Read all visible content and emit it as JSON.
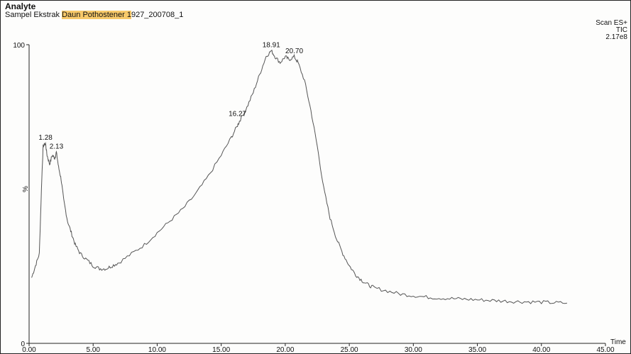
{
  "header": {
    "title": "Analyte",
    "sample_prefix": "Sampel Ekstrak ",
    "sample_highlight": "Daun Pothostener 1",
    "sample_suffix": "927_200708_1",
    "scan_mode": "Scan ES+",
    "trace_type": "TIC",
    "intensity": "2.17e8"
  },
  "colors": {
    "highlight": "#f7c96a",
    "trace": "#555555"
  },
  "chart_data": {
    "type": "line",
    "title": "",
    "xlabel": "Time",
    "ylabel": "%",
    "xlim": [
      0,
      45
    ],
    "ylim": [
      0,
      100
    ],
    "x_ticks": [
      "0.00",
      "5.00",
      "10.00",
      "15.00",
      "20.00",
      "25.00",
      "30.00",
      "35.00",
      "40.00",
      "45.00"
    ],
    "y_ticks": [
      "0",
      "100"
    ],
    "grid": false,
    "series": [
      {
        "x": [
          0.2,
          0.5,
          0.8,
          1.0,
          1.1,
          1.28,
          1.4,
          1.6,
          1.8,
          2.0,
          2.13,
          2.3,
          2.5,
          2.7,
          3.0,
          3.3,
          3.6,
          4.0,
          4.5,
          5.0,
          5.5,
          6.0,
          6.5,
          7.0,
          8.0,
          9.0,
          10.0,
          11.0,
          12.0,
          13.0,
          14.0,
          15.0,
          15.8,
          16.27,
          16.5,
          17.0,
          17.5,
          18.0,
          18.5,
          18.91,
          19.2,
          19.6,
          20.0,
          20.3,
          20.7,
          21.0,
          21.5,
          22.0,
          22.5,
          23.0,
          23.5,
          24.0,
          24.5,
          25.0,
          25.5,
          26.0,
          26.5,
          27.0,
          28.0,
          29.0,
          30.0,
          31.0,
          32.0,
          33.0,
          34.0,
          35.0,
          36.0,
          37.0,
          38.0,
          39.0,
          40.0,
          41.0,
          42.0
        ],
        "y": [
          22,
          26,
          30,
          56,
          66,
          67,
          63,
          60,
          63,
          62,
          64,
          59,
          55,
          48,
          41,
          37,
          33,
          30,
          28,
          26,
          25,
          25,
          26,
          27,
          30,
          33,
          37,
          41,
          45,
          50,
          56,
          63,
          69,
          73,
          75,
          79,
          84,
          90,
          96,
          98,
          96,
          94,
          96,
          95,
          96,
          94,
          88,
          78,
          66,
          52,
          42,
          35,
          30,
          26,
          23,
          21,
          19.5,
          18.5,
          17.5,
          16.5,
          16,
          15.5,
          15.2,
          15,
          14.8,
          14.6,
          14.4,
          14.2,
          14,
          13.9,
          13.8,
          13.6,
          13.5
        ]
      }
    ],
    "peak_labels": [
      {
        "x": 1.28,
        "y": 67,
        "label": "1.28"
      },
      {
        "x": 2.13,
        "y": 64,
        "label": "2.13"
      },
      {
        "x": 16.27,
        "y": 75,
        "label": "16.27"
      },
      {
        "x": 18.91,
        "y": 98,
        "label": "18.91"
      },
      {
        "x": 20.7,
        "y": 96,
        "label": "20.70"
      }
    ]
  }
}
